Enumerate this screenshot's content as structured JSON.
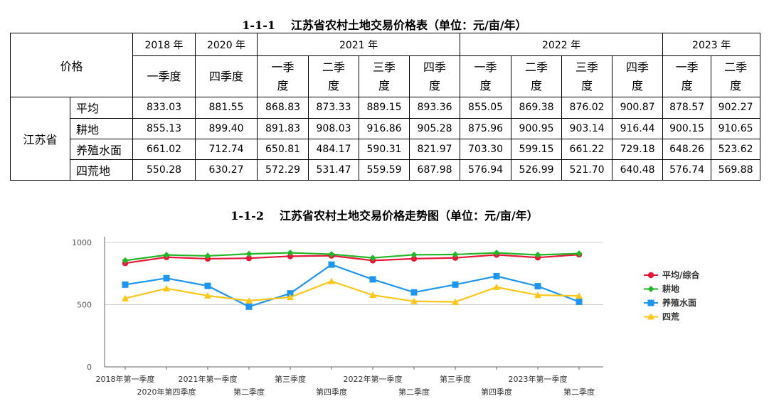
{
  "table": {
    "caption_num": "1-1-1",
    "caption_text": "江苏省农村土地交易价格表（单位：元/亩/年）",
    "corner_label": "价格",
    "province": "江苏省",
    "years": [
      "2018 年",
      "2020 年",
      "2021 年",
      "2022 年",
      "2023 年"
    ],
    "quarters": [
      [
        "一季度"
      ],
      [
        "四季度"
      ],
      [
        "一季",
        "度"
      ],
      [
        "二季",
        "度"
      ],
      [
        "三季",
        "度"
      ],
      [
        "四季",
        "度"
      ],
      [
        "一季",
        "度"
      ],
      [
        "二季",
        "度"
      ],
      [
        "三季",
        "度"
      ],
      [
        "四季",
        "度"
      ],
      [
        "一季",
        "度"
      ],
      [
        "二季",
        "度"
      ]
    ],
    "rows": [
      {
        "label": "平均",
        "values": [
          "833.03",
          "881.55",
          "868.83",
          "873.33",
          "889.15",
          "893.36",
          "855.05",
          "869.38",
          "876.02",
          "900.87",
          "878.57",
          "902.27"
        ]
      },
      {
        "label": "耕地",
        "values": [
          "855.13",
          "899.40",
          "891.83",
          "908.03",
          "916.86",
          "905.28",
          "875.96",
          "900.95",
          "903.14",
          "916.44",
          "900.15",
          "910.65"
        ]
      },
      {
        "label": "养殖水面",
        "values": [
          "661.02",
          "712.74",
          "650.81",
          "484.17",
          "590.31",
          "821.97",
          "703.30",
          "599.15",
          "661.22",
          "729.18",
          "648.26",
          "523.62"
        ]
      },
      {
        "label": "四荒地",
        "values": [
          "550.28",
          "630.27",
          "572.29",
          "531.47",
          "559.59",
          "687.98",
          "576.94",
          "526.99",
          "521.70",
          "640.48",
          "576.74",
          "569.88"
        ]
      }
    ]
  },
  "chart_caption_num": "1-1-2",
  "chart_caption_text": "江苏省农村土地交易价格走势图（单位：元/亩/年）",
  "chart_data": {
    "type": "line",
    "categories": [
      "2018年第一季度",
      "2020年第四季度",
      "2021年第一季度",
      "第二季度",
      "第三季度",
      "第四季度",
      "2022年第一季度",
      "第二季度",
      "第三季度",
      "第四季度",
      "2023年第一季度",
      "第二季度"
    ],
    "ylim": [
      0,
      1000
    ],
    "yticks": [
      "0",
      "500",
      "1000"
    ],
    "grid": true,
    "legend_position": "right",
    "series": [
      {
        "name": "平均/综合",
        "color": "#e8173a",
        "marker": "circle",
        "values": [
          833.03,
          881.55,
          868.83,
          873.33,
          889.15,
          893.36,
          855.05,
          869.38,
          876.02,
          900.87,
          878.57,
          902.27
        ]
      },
      {
        "name": "耕地",
        "color": "#22b726",
        "marker": "diamond",
        "values": [
          855.13,
          899.4,
          891.83,
          908.03,
          916.86,
          905.28,
          875.96,
          900.95,
          903.14,
          916.44,
          900.15,
          910.65
        ]
      },
      {
        "name": "养殖水面",
        "color": "#1e96f0",
        "marker": "square",
        "values": [
          661.02,
          712.74,
          650.81,
          484.17,
          590.31,
          821.97,
          703.3,
          599.15,
          661.22,
          729.18,
          648.26,
          523.62
        ]
      },
      {
        "name": "四荒",
        "color": "#ffc61a",
        "marker": "triangle",
        "values": [
          550.28,
          630.27,
          572.29,
          531.47,
          559.59,
          687.98,
          576.94,
          526.99,
          521.7,
          640.48,
          576.74,
          569.88
        ]
      }
    ]
  }
}
